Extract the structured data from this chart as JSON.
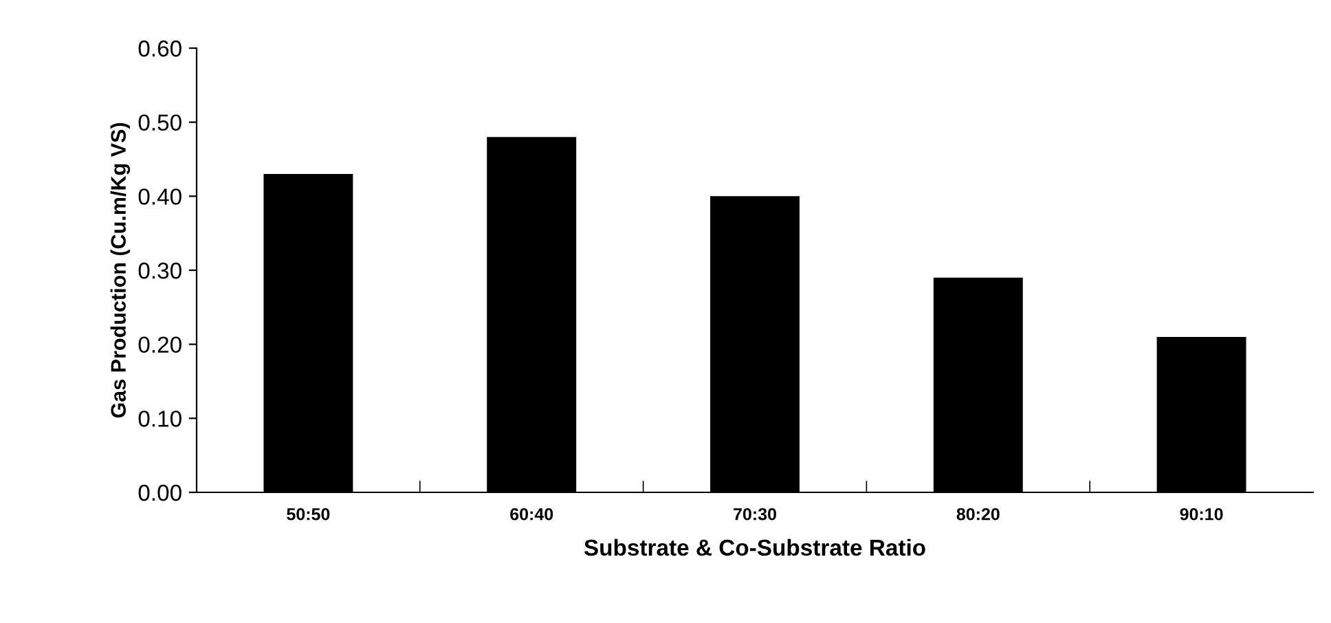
{
  "chart_data": {
    "type": "bar",
    "xlabel": "Substrate & Co-Substrate Ratio",
    "ylabel": "Gas Production (Cu.m/Kg VS)",
    "categories": [
      "50:50",
      "60:40",
      "70:30",
      "80:20",
      "90:10"
    ],
    "values": [
      0.43,
      0.48,
      0.4,
      0.29,
      0.21
    ],
    "color": "#000000",
    "ylim": [
      0,
      0.6
    ],
    "yticks": [
      {
        "value": 0,
        "label": "0.00"
      },
      {
        "value": 0.1,
        "label": "0.10"
      },
      {
        "value": 0.2,
        "label": "0.20"
      },
      {
        "value": 0.3,
        "label": "0.30"
      },
      {
        "value": 0.4,
        "label": "0.40"
      },
      {
        "value": 0.5,
        "label": "0.50"
      },
      {
        "value": 0.6,
        "label": "0.60"
      }
    ],
    "grid": false
  }
}
